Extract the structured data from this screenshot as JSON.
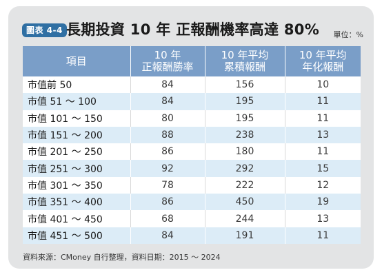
{
  "badge": "圖表 4-4",
  "title": "長期投資 10 年 正報酬機率高達 80%",
  "unit": "單位：%",
  "table": {
    "headers": [
      [
        "項目"
      ],
      [
        "10 年",
        "正報酬勝率"
      ],
      [
        "10 年平均",
        "累積報酬"
      ],
      [
        "10 年平均",
        "年化報酬"
      ]
    ],
    "rows": [
      [
        "市值前 50",
        "84",
        "156",
        "10"
      ],
      [
        "市值 51 ～ 100",
        "84",
        "195",
        "11"
      ],
      [
        "市值 101 ～ 150",
        "80",
        "195",
        "11"
      ],
      [
        "市值 151 ～ 200",
        "88",
        "238",
        "13"
      ],
      [
        "市值 201 ～ 250",
        "86",
        "180",
        "11"
      ],
      [
        "市值 251 ～ 300",
        "92",
        "292",
        "15"
      ],
      [
        "市值 301 ～ 350",
        "78",
        "222",
        "12"
      ],
      [
        "市值 351 ～ 400",
        "86",
        "450",
        "19"
      ],
      [
        "市值 401 ～ 450",
        "68",
        "244",
        "13"
      ],
      [
        "市值 451 ～ 500",
        "84",
        "191",
        "11"
      ]
    ]
  },
  "source": "資料來源：CMoney 自行整理，資料日期：2015 ～ 2024"
}
